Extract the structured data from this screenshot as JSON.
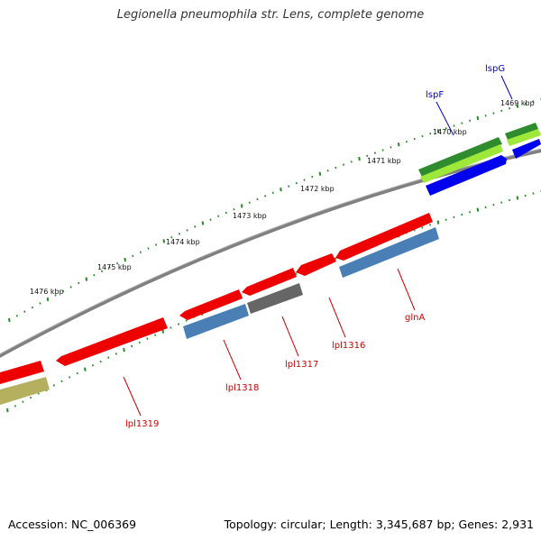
{
  "title": "Legionella pneumophila str. Lens, complete genome",
  "footer": {
    "accession": "Accession: NC_006369",
    "summary": "Topology: circular; Length: 3,345,687 bp; Genes: 2,931"
  },
  "ticks": [
    {
      "label": "1469 kbp"
    },
    {
      "label": "1470 kbp"
    },
    {
      "label": "1471 kbp"
    },
    {
      "label": "1472 kbp"
    },
    {
      "label": "1473 kbp"
    },
    {
      "label": "1474 kbp"
    },
    {
      "label": "1475 kbp"
    },
    {
      "label": "1476 kbp"
    }
  ],
  "genes": [
    {
      "label": "lspG",
      "color": "#0000cc",
      "strand": "forward"
    },
    {
      "label": "lspF",
      "color": "#0000cc",
      "strand": "forward"
    },
    {
      "label": "glnA",
      "color": "#cc0000",
      "strand": "reverse"
    },
    {
      "label": "lpl1316",
      "color": "#cc0000",
      "strand": "reverse"
    },
    {
      "label": "lpl1317",
      "color": "#cc0000",
      "strand": "reverse"
    },
    {
      "label": "lpl1318",
      "color": "#cc0000",
      "strand": "reverse"
    },
    {
      "label": "lpl1319",
      "color": "#cc0000",
      "strand": "reverse"
    }
  ],
  "colors": {
    "backbone": "#808080",
    "tick": "#2a8a2a",
    "gene_red": "#ee0000",
    "gene_blue_cds": "#4a7fb5",
    "gene_gray": "#666666",
    "gene_green": "#2e8b2e",
    "gene_lightgreen": "#9ee83a",
    "gene_blue": "#0000ee",
    "gene_olive": "#b5b060"
  }
}
